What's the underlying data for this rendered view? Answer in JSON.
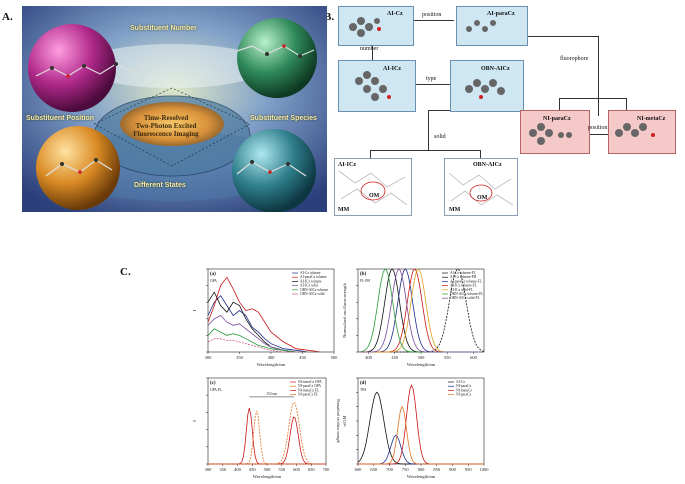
{
  "labels": {
    "a": "A.",
    "b": "B.",
    "c": "C."
  },
  "panel_a": {
    "number": "Substituent Number",
    "position": "Substituent Position",
    "species": "Substituent Species",
    "states": "Different States",
    "center_title": [
      "Time-Resolved",
      "Two-Photon Excited",
      "Fluorescence Imaging"
    ],
    "colors": {
      "sky": "#5b7fbf",
      "magenta": "#b0298a",
      "green": "#2f8a5a",
      "orange": "#d98a24",
      "teal": "#2f7f8c"
    }
  },
  "panel_b": {
    "nodes": {
      "ai_cz": "AI-Cz",
      "ai_paracz": "AI-paraCz",
      "ai_icz": "AI-ICz",
      "obn_aicz": "OBN-AICz",
      "ni_paracz": "NI-paraCz",
      "ni_metacz": "NI-metaCz",
      "ai_icz_solid": "AI-ICz",
      "obn_aics_solid": "OBN-AICz"
    },
    "edges": {
      "position": "position",
      "number": "number",
      "type": "type",
      "fluorophore": "fluorophore",
      "solid": "solid",
      "position2": "position"
    },
    "marks": {
      "om": "OM",
      "mm": "MM"
    }
  },
  "chart_data": [
    {
      "panel": "(a)",
      "title": "OPA",
      "type": "line",
      "xlabel": "Wavelength/nm",
      "ylabel": "I",
      "xticks": [
        300,
        350,
        400,
        450,
        500
      ],
      "xlim": [
        300,
        500
      ],
      "ylim": [
        0,
        0.5
      ],
      "yticks": [
        "0.0",
        "0.1",
        "0.2",
        "0.3",
        "0.4",
        "0.5"
      ],
      "series": [
        {
          "name": "AI-Cz toluene",
          "color": "#1f2d8a",
          "x": [
            300,
            310,
            320,
            330,
            340,
            350,
            360,
            370,
            380,
            390,
            400,
            420,
            440,
            460,
            480,
            500
          ],
          "y": [
            0.22,
            0.3,
            0.34,
            0.28,
            0.22,
            0.25,
            0.22,
            0.15,
            0.12,
            0.08,
            0.05,
            0.02,
            0.01,
            0.0,
            0.0,
            0.0
          ]
        },
        {
          "name": "AI-paraCz toluene",
          "color": "#c81818",
          "x": [
            300,
            310,
            320,
            330,
            340,
            350,
            360,
            370,
            380,
            390,
            400,
            420,
            440,
            460,
            480,
            500
          ],
          "y": [
            0.18,
            0.28,
            0.4,
            0.45,
            0.38,
            0.3,
            0.25,
            0.26,
            0.24,
            0.18,
            0.12,
            0.06,
            0.02,
            0.01,
            0.0,
            0.0
          ]
        },
        {
          "name": "AI-ICz toluene",
          "color": "#111111",
          "x": [
            300,
            310,
            320,
            330,
            340,
            350,
            360,
            370,
            380,
            390,
            400,
            420,
            440,
            460,
            480,
            500
          ],
          "y": [
            0.3,
            0.36,
            0.28,
            0.24,
            0.3,
            0.28,
            0.2,
            0.14,
            0.1,
            0.06,
            0.03,
            0.01,
            0.0,
            0.0,
            0.0,
            0.0
          ]
        },
        {
          "name": "AI-ICz solid",
          "color": "#7a4a9a",
          "x": [
            300,
            310,
            320,
            330,
            340,
            350,
            360,
            370,
            380,
            390,
            400,
            420,
            440,
            460,
            480,
            500
          ],
          "y": [
            0.16,
            0.2,
            0.22,
            0.18,
            0.16,
            0.17,
            0.14,
            0.11,
            0.08,
            0.05,
            0.03,
            0.01,
            0.0,
            0.0,
            0.0,
            0.0
          ]
        },
        {
          "name": "OBN-AICz toluene",
          "color": "#2a9a3a",
          "x": [
            300,
            310,
            320,
            330,
            340,
            350,
            360,
            370,
            380,
            390,
            400,
            420,
            440,
            460,
            480,
            500
          ],
          "y": [
            0.1,
            0.14,
            0.12,
            0.1,
            0.11,
            0.1,
            0.08,
            0.06,
            0.04,
            0.03,
            0.02,
            0.01,
            0.0,
            0.0,
            0.0,
            0.0
          ]
        },
        {
          "name": "OBN-AICz solid",
          "color": "#d45a8a",
          "dash": true,
          "x": [
            300,
            310,
            320,
            330,
            340,
            350,
            360,
            370,
            380,
            390,
            400,
            420,
            440,
            460,
            480,
            500
          ],
          "y": [
            0.06,
            0.08,
            0.08,
            0.07,
            0.07,
            0.06,
            0.05,
            0.04,
            0.03,
            0.02,
            0.01,
            0.0,
            0.0,
            0.0,
            0.0,
            0.0
          ]
        }
      ]
    },
    {
      "panel": "(b)",
      "title": "FL-PH",
      "type": "line",
      "xlabel": "Wavelength/nm",
      "ylabel": "Normalized oscillator strength",
      "xticks": [
        400,
        450,
        500,
        550,
        600
      ],
      "xlim": [
        380,
        620
      ],
      "ylim": [
        0,
        1.0
      ],
      "yticks": [
        "0.0",
        "0.2",
        "0.4",
        "0.6",
        "0.8",
        "1.0"
      ],
      "series": [
        {
          "name": "AI-Cz toluene-FL",
          "color": "#111111",
          "peak": 445,
          "width": 14
        },
        {
          "name": "AI-Cz toluene-PH",
          "color": "#111111",
          "dash": true,
          "peak": 570,
          "width": 16
        },
        {
          "name": "AI-paraCz toluene-FL",
          "color": "#1f2d8a",
          "peak": 470,
          "width": 14
        },
        {
          "name": "AI-ICz toluene-FL",
          "color": "#c81818",
          "peak": 488,
          "width": 14
        },
        {
          "name": "AI-ICz solid-FL",
          "color": "#e0a020",
          "peak": 495,
          "width": 14
        },
        {
          "name": "OBN-AICz toluene-FL",
          "color": "#2a9a3a",
          "peak": 432,
          "width": 14
        },
        {
          "name": "OBN-AICz solid-FL",
          "color": "#7a4a9a",
          "peak": 458,
          "width": 14
        }
      ]
    },
    {
      "panel": "(c)",
      "title": "OPA-FL",
      "type": "line",
      "xlabel": "Wavelength/nm",
      "ylabel": "I",
      "y2label": "Normalized oscillator strength",
      "xticks": [
        300,
        350,
        400,
        450,
        500,
        550,
        600,
        650,
        700
      ],
      "xlim": [
        300,
        700
      ],
      "ylim": [
        0,
        1.0
      ],
      "yticks": [
        "0.0",
        "0.2",
        "0.4",
        "0.6",
        "0.8",
        "1.0"
      ],
      "annotation": "152 nm",
      "series": [
        {
          "name": "NI-metaCz OPA",
          "color": "#c81818",
          "peak": 440,
          "width": 10,
          "amp": 0.65
        },
        {
          "name": "NI-paraCz OPA",
          "color": "#e07020",
          "dash": true,
          "peak": 465,
          "width": 10,
          "amp": 0.62
        },
        {
          "name": "NI-metaCz FL",
          "color": "#c81818",
          "peak": 592,
          "width": 14,
          "amp": 0.55
        },
        {
          "name": "NI-paraCz FL",
          "color": "#e07020",
          "dash": true,
          "peak": 592,
          "width": 18,
          "amp": 0.72
        }
      ]
    },
    {
      "panel": "(d)",
      "title": "TPA",
      "type": "line",
      "xlabel": "Wavelength/nm",
      "ylabel": "σ/GM",
      "xticks": [
        600,
        650,
        700,
        750,
        800,
        850,
        900,
        950,
        1000
      ],
      "xlim": [
        600,
        1000
      ],
      "ylim": [
        0,
        120
      ],
      "yticks": [
        "0",
        "20",
        "40",
        "60",
        "80",
        "100",
        "120"
      ],
      "series": [
        {
          "name": "AI-Cz",
          "color": "#111111",
          "peak": 660,
          "width": 22,
          "amp": 100
        },
        {
          "name": "NI-paraCz",
          "color": "#1f2d8a",
          "peak": 720,
          "width": 16,
          "amp": 40
        },
        {
          "name": "NI-metaCz",
          "color": "#c81818",
          "peak": 770,
          "width": 16,
          "amp": 110
        },
        {
          "name": "NI-paraCz",
          "color": "#e07020",
          "peak": 740,
          "width": 14,
          "amp": 80
        }
      ]
    }
  ]
}
